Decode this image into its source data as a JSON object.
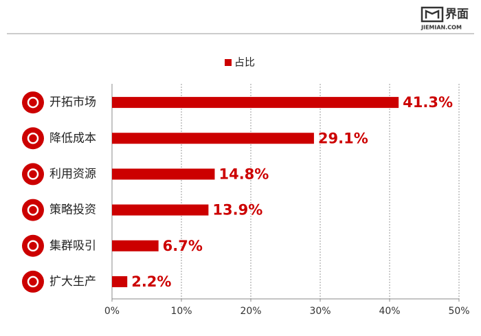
{
  "logo": {
    "name": "界面",
    "site": "JIEMIAN.COM"
  },
  "chart_data": {
    "type": "hbar",
    "categories": [
      "开拓市场",
      "降低成本",
      "利用资源",
      "策略投资",
      "集群吸引",
      "扩大生产"
    ],
    "series": [
      {
        "name": "占比",
        "color": "#cc0000",
        "values": [
          41.3,
          29.1,
          14.8,
          13.9,
          6.7,
          2.2
        ],
        "value_labels": [
          "41.3%",
          "29.1%",
          "14.8%",
          "13.9%",
          "6.7%",
          "2.2%"
        ]
      }
    ],
    "xlim": [
      0,
      50
    ],
    "xticks": [
      {
        "value": 0,
        "label": "0%"
      },
      {
        "value": 10,
        "label": "10%"
      },
      {
        "value": 20,
        "label": "20%"
      },
      {
        "value": 30,
        "label": "30%"
      },
      {
        "value": 40,
        "label": "40%"
      },
      {
        "value": 50,
        "label": "50%"
      }
    ],
    "grid": true,
    "legend": "top"
  }
}
